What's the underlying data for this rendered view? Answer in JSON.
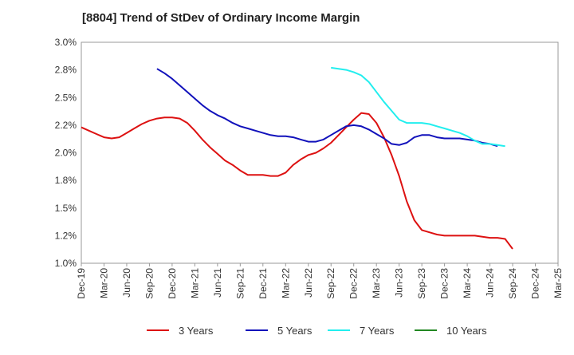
{
  "chart_data": {
    "type": "line",
    "title": "[8804]  Trend of StDev of Ordinary Income Margin",
    "xlabel": "",
    "ylabel": "",
    "x_ticks": [
      "Dec-19",
      "Mar-20",
      "Jun-20",
      "Sep-20",
      "Dec-20",
      "Mar-21",
      "Jun-21",
      "Sep-21",
      "Dec-21",
      "Mar-22",
      "Jun-22",
      "Sep-22",
      "Dec-22",
      "Mar-23",
      "Jun-23",
      "Sep-23",
      "Dec-23",
      "Mar-24",
      "Jun-24",
      "Sep-24",
      "Dec-24",
      "Mar-25"
    ],
    "y_ticks": [
      "1.0%",
      "1.2%",
      "1.5%",
      "1.8%",
      "2.0%",
      "2.2%",
      "2.5%",
      "2.8%",
      "3.0%"
    ],
    "ylim": [
      1.0,
      3.0
    ],
    "grid": true,
    "legend_position": "bottom",
    "series": [
      {
        "name": "3 Years",
        "color": "#dd1111",
        "start_index": 0,
        "values": [
          2.23,
          2.2,
          2.17,
          2.14,
          2.13,
          2.14,
          2.18,
          2.22,
          2.26,
          2.29,
          2.31,
          2.32,
          2.32,
          2.31,
          2.27,
          2.2,
          2.12,
          2.05,
          1.99,
          1.93,
          1.89,
          1.84,
          1.8,
          1.8,
          1.8,
          1.79,
          1.79,
          1.82,
          1.89,
          1.94,
          1.98,
          2.0,
          2.04,
          2.09,
          2.16,
          2.23,
          2.3,
          2.36,
          2.35,
          2.27,
          2.14,
          1.98,
          1.79,
          1.56,
          1.39,
          1.3,
          1.28,
          1.26,
          1.25,
          1.25,
          1.25,
          1.25,
          1.25,
          1.24,
          1.23,
          1.23,
          1.22,
          1.13
        ]
      },
      {
        "name": "5 Years",
        "color": "#1111bb",
        "start_index": 10,
        "values": [
          2.76,
          2.72,
          2.67,
          2.61,
          2.55,
          2.49,
          2.43,
          2.38,
          2.34,
          2.31,
          2.27,
          2.24,
          2.22,
          2.2,
          2.18,
          2.16,
          2.15,
          2.15,
          2.14,
          2.12,
          2.1,
          2.1,
          2.12,
          2.16,
          2.2,
          2.24,
          2.25,
          2.24,
          2.21,
          2.17,
          2.13,
          2.08,
          2.07,
          2.09,
          2.14,
          2.16,
          2.16,
          2.14,
          2.13,
          2.13,
          2.13,
          2.12,
          2.11,
          2.09,
          2.08,
          2.06
        ]
      },
      {
        "name": "7 Years",
        "color": "#22eeee",
        "start_index": 33,
        "values": [
          2.77,
          2.76,
          2.75,
          2.73,
          2.7,
          2.64,
          2.55,
          2.46,
          2.38,
          2.3,
          2.27,
          2.27,
          2.27,
          2.26,
          2.24,
          2.22,
          2.2,
          2.18,
          2.15,
          2.11,
          2.08,
          2.08,
          2.07,
          2.06
        ]
      },
      {
        "name": "10 Years",
        "color": "#228822",
        "start_index": 0,
        "values": []
      }
    ]
  }
}
